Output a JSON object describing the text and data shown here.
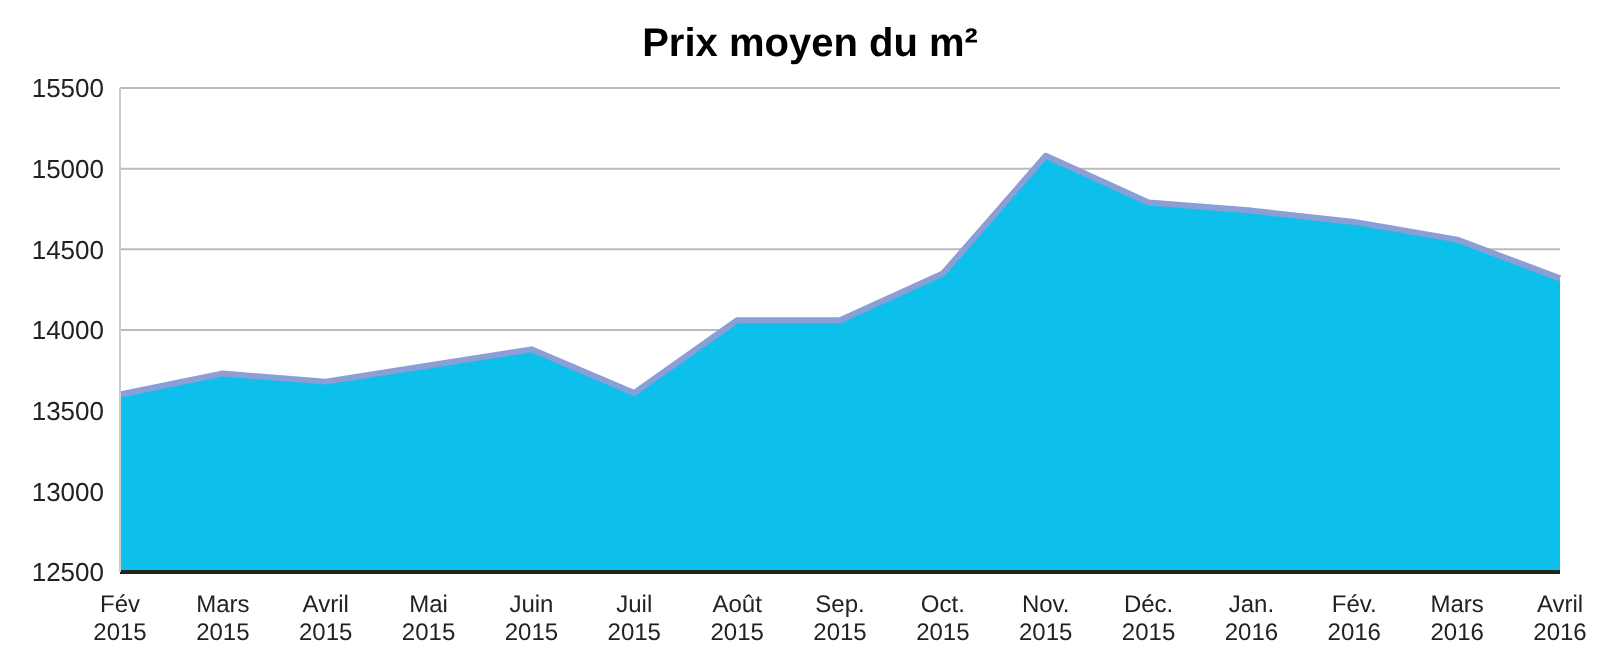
{
  "chart_data": {
    "type": "area",
    "title": "Prix moyen du m²",
    "categories": [
      "Fév 2015",
      "Mars 2015",
      "Avril 2015",
      "Mai 2015",
      "Juin 2015",
      "Juil 2015",
      "Août 2015",
      "Sep. 2015",
      "Oct. 2015",
      "Nov. 2015",
      "Déc. 2015",
      "Jan. 2016",
      "Fév. 2016",
      "Mars 2016",
      "Avril 2016"
    ],
    "values": [
      13600,
      13730,
      13680,
      13780,
      13880,
      13610,
      14060,
      14060,
      14350,
      15080,
      14790,
      14740,
      14670,
      14560,
      14320
    ],
    "color": "#0dc0ec",
    "ylim": [
      12500,
      15500
    ],
    "yticks": [
      12500,
      13000,
      13500,
      14000,
      14500,
      15000,
      15500
    ],
    "grid": "y"
  }
}
